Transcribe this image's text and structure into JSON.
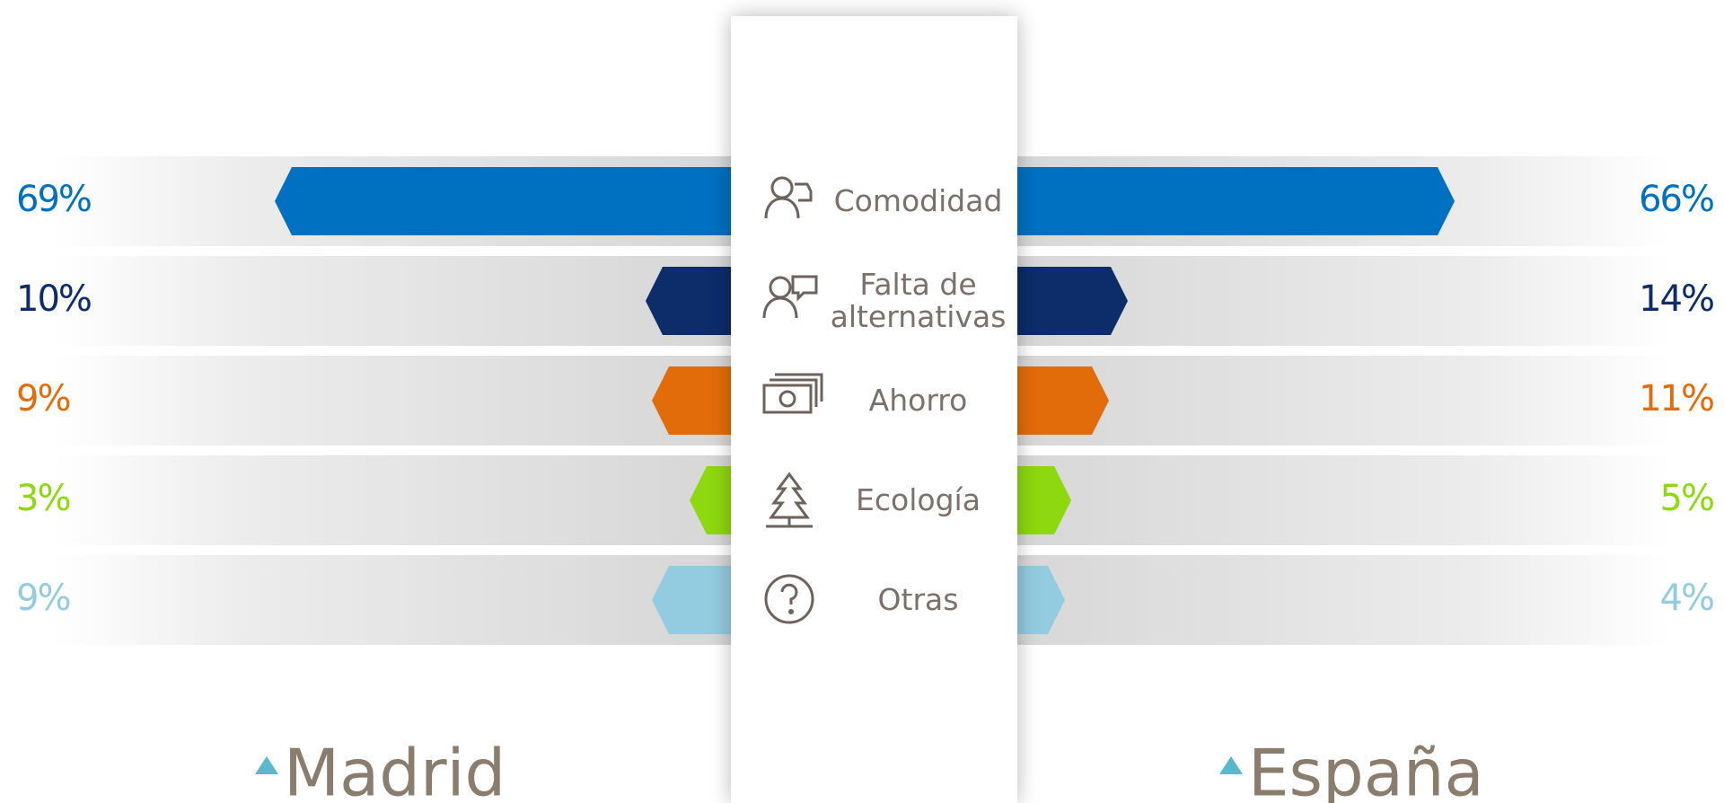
{
  "chart_data": {
    "type": "butterfly",
    "categories": [
      "Comodidad",
      "Falta de alternativas",
      "Ahorro",
      "Ecología",
      "Otras"
    ],
    "colors": [
      "#0070c0",
      "#0c2c6a",
      "#e36c0a",
      "#8ed80f",
      "#93cbe0"
    ],
    "series": [
      {
        "name": "Madrid",
        "values": [
          69,
          10,
          9,
          3,
          9
        ],
        "value_labels": [
          "69%",
          "10%",
          "9%",
          "3%",
          "9%"
        ]
      },
      {
        "name": "España",
        "values": [
          66,
          14,
          11,
          5,
          4
        ],
        "value_labels": [
          "66%",
          "14%",
          "11%",
          "5%",
          "4%"
        ]
      }
    ]
  }
}
